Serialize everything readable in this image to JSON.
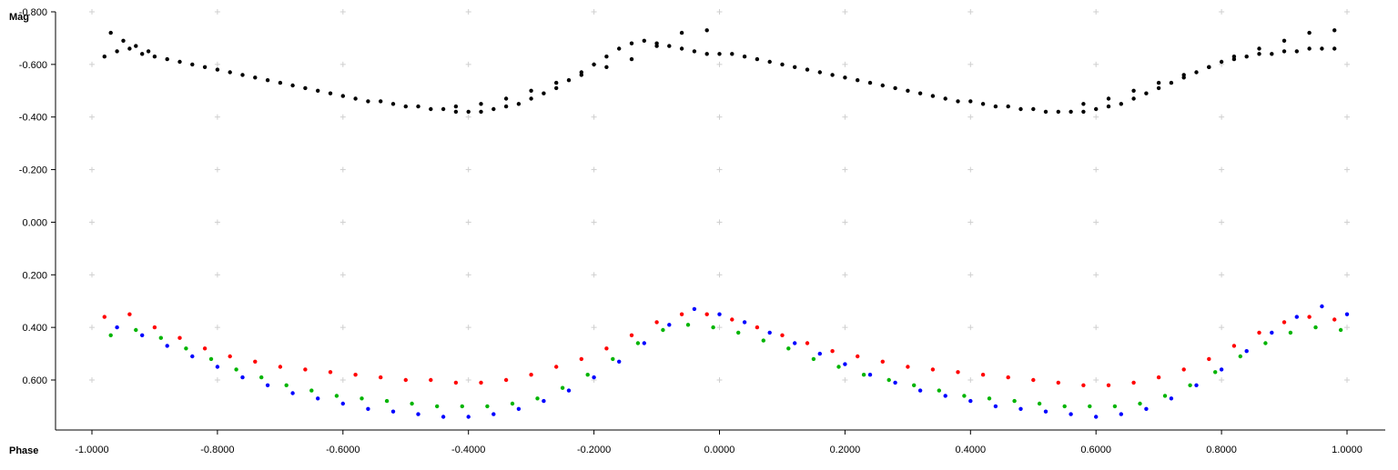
{
  "chart_data": {
    "type": "scatter",
    "xlabel": "Phase",
    "ylabel": "Mag",
    "xlim": [
      -1.0,
      1.0
    ],
    "ylim": [
      -0.8,
      0.8
    ],
    "y_inverted": true,
    "grid": "crosses",
    "x_ticks": [
      -1.0,
      -0.8,
      -0.6,
      -0.4,
      -0.2,
      0.0,
      0.2,
      0.4,
      0.6,
      0.8,
      1.0
    ],
    "x_tick_labels": [
      "-1.0000",
      "-0.8000",
      "-0.6000",
      "-0.4000",
      "-0.2000",
      "0.0000",
      "0.2000",
      "0.4000",
      "0.6000",
      "0.8000",
      "1.0000"
    ],
    "y_ticks": [
      -0.8,
      -0.6,
      -0.4,
      -0.2,
      0.0,
      0.2,
      0.4,
      0.6
    ],
    "y_tick_labels": [
      "-0.800",
      "-0.600",
      "-0.400",
      "-0.200",
      "0.000",
      "0.200",
      "0.400",
      "0.600"
    ],
    "series": [
      {
        "color": "#000000",
        "x": [
          -0.98,
          -0.96,
          -0.94,
          -0.92,
          -0.9,
          -0.88,
          -0.86,
          -0.84,
          -0.82,
          -0.8,
          -0.78,
          -0.76,
          -0.74,
          -0.72,
          -0.7,
          -0.68,
          -0.66,
          -0.64,
          -0.62,
          -0.6,
          -0.58,
          -0.56,
          -0.54,
          -0.52,
          -0.5,
          -0.48,
          -0.46,
          -0.44,
          -0.42,
          -0.4,
          -0.38,
          -0.36,
          -0.34,
          -0.32,
          -0.3,
          -0.28,
          -0.26,
          -0.24,
          -0.22,
          -0.2,
          -0.18,
          -0.16,
          -0.14,
          -0.12,
          -0.1,
          -0.08,
          -0.06,
          -0.04,
          -0.02,
          0.0,
          0.02,
          0.04,
          0.06,
          0.08,
          0.1,
          0.12,
          0.14,
          0.16,
          0.18,
          0.2,
          0.22,
          0.24,
          0.26,
          0.28,
          0.3,
          0.32,
          0.34,
          0.36,
          0.38,
          0.4,
          0.42,
          0.44,
          0.46,
          0.48,
          0.5,
          0.52,
          0.54,
          0.56,
          0.58,
          0.6,
          0.62,
          0.64,
          0.66,
          0.68,
          0.7,
          0.72,
          0.74,
          0.76,
          0.78,
          0.8,
          0.82,
          0.84,
          0.86,
          0.88,
          0.9,
          0.92,
          0.94,
          0.96,
          0.98,
          -0.97,
          -0.95,
          -0.93,
          -0.91,
          -0.42,
          -0.38,
          -0.34,
          -0.3,
          -0.26,
          -0.22,
          -0.18,
          -0.14,
          -0.1,
          -0.06,
          -0.02,
          0.58,
          0.62,
          0.66,
          0.7,
          0.74,
          0.78,
          0.82,
          0.86,
          0.9,
          0.94,
          0.98
        ],
        "y": [
          -0.63,
          -0.65,
          -0.66,
          -0.64,
          -0.63,
          -0.62,
          -0.61,
          -0.6,
          -0.59,
          -0.58,
          -0.57,
          -0.56,
          -0.55,
          -0.54,
          -0.53,
          -0.52,
          -0.51,
          -0.5,
          -0.49,
          -0.48,
          -0.47,
          -0.46,
          -0.46,
          -0.45,
          -0.44,
          -0.44,
          -0.43,
          -0.43,
          -0.42,
          -0.42,
          -0.42,
          -0.43,
          -0.44,
          -0.45,
          -0.47,
          -0.49,
          -0.51,
          -0.54,
          -0.57,
          -0.6,
          -0.63,
          -0.66,
          -0.68,
          -0.69,
          -0.68,
          -0.67,
          -0.66,
          -0.65,
          -0.64,
          -0.64,
          -0.64,
          -0.63,
          -0.62,
          -0.61,
          -0.6,
          -0.59,
          -0.58,
          -0.57,
          -0.56,
          -0.55,
          -0.54,
          -0.53,
          -0.52,
          -0.51,
          -0.5,
          -0.49,
          -0.48,
          -0.47,
          -0.46,
          -0.46,
          -0.45,
          -0.44,
          -0.44,
          -0.43,
          -0.43,
          -0.42,
          -0.42,
          -0.42,
          -0.42,
          -0.43,
          -0.44,
          -0.45,
          -0.47,
          -0.49,
          -0.51,
          -0.53,
          -0.55,
          -0.57,
          -0.59,
          -0.61,
          -0.62,
          -0.63,
          -0.64,
          -0.64,
          -0.65,
          -0.65,
          -0.66,
          -0.66,
          -0.66,
          -0.72,
          -0.69,
          -0.67,
          -0.65,
          -0.44,
          -0.45,
          -0.47,
          -0.5,
          -0.53,
          -0.56,
          -0.59,
          -0.62,
          -0.67,
          -0.72,
          -0.73,
          -0.45,
          -0.47,
          -0.5,
          -0.53,
          -0.56,
          -0.59,
          -0.63,
          -0.66,
          -0.69,
          -0.72,
          -0.73
        ]
      },
      {
        "color": "#ff0000",
        "x": [
          -0.98,
          -0.94,
          -0.9,
          -0.86,
          -0.82,
          -0.78,
          -0.74,
          -0.7,
          -0.66,
          -0.62,
          -0.58,
          -0.54,
          -0.5,
          -0.46,
          -0.42,
          -0.38,
          -0.34,
          -0.3,
          -0.26,
          -0.22,
          -0.18,
          -0.14,
          -0.1,
          -0.06,
          -0.02,
          0.02,
          0.06,
          0.1,
          0.14,
          0.18,
          0.22,
          0.26,
          0.3,
          0.34,
          0.38,
          0.42,
          0.46,
          0.5,
          0.54,
          0.58,
          0.62,
          0.66,
          0.7,
          0.74,
          0.78,
          0.82,
          0.86,
          0.9,
          0.94,
          0.98
        ],
        "y": [
          0.36,
          0.35,
          0.4,
          0.44,
          0.48,
          0.51,
          0.53,
          0.55,
          0.56,
          0.57,
          0.58,
          0.59,
          0.6,
          0.6,
          0.61,
          0.61,
          0.6,
          0.58,
          0.55,
          0.52,
          0.48,
          0.43,
          0.38,
          0.35,
          0.35,
          0.37,
          0.4,
          0.43,
          0.46,
          0.49,
          0.51,
          0.53,
          0.55,
          0.56,
          0.57,
          0.58,
          0.59,
          0.6,
          0.61,
          0.62,
          0.62,
          0.61,
          0.59,
          0.56,
          0.52,
          0.47,
          0.42,
          0.38,
          0.36,
          0.37
        ]
      },
      {
        "color": "#00b400",
        "x": [
          -0.97,
          -0.93,
          -0.89,
          -0.85,
          -0.81,
          -0.77,
          -0.73,
          -0.69,
          -0.65,
          -0.61,
          -0.57,
          -0.53,
          -0.49,
          -0.45,
          -0.41,
          -0.37,
          -0.33,
          -0.29,
          -0.25,
          -0.21,
          -0.17,
          -0.13,
          -0.09,
          -0.05,
          -0.01,
          0.03,
          0.07,
          0.11,
          0.15,
          0.19,
          0.23,
          0.27,
          0.31,
          0.35,
          0.39,
          0.43,
          0.47,
          0.51,
          0.55,
          0.59,
          0.63,
          0.67,
          0.71,
          0.75,
          0.79,
          0.83,
          0.87,
          0.91,
          0.95,
          0.99
        ],
        "y": [
          0.43,
          0.41,
          0.44,
          0.48,
          0.52,
          0.56,
          0.59,
          0.62,
          0.64,
          0.66,
          0.67,
          0.68,
          0.69,
          0.7,
          0.7,
          0.7,
          0.69,
          0.67,
          0.63,
          0.58,
          0.52,
          0.46,
          0.41,
          0.39,
          0.4,
          0.42,
          0.45,
          0.48,
          0.52,
          0.55,
          0.58,
          0.6,
          0.62,
          0.64,
          0.66,
          0.67,
          0.68,
          0.69,
          0.7,
          0.7,
          0.7,
          0.69,
          0.66,
          0.62,
          0.57,
          0.51,
          0.46,
          0.42,
          0.4,
          0.41
        ]
      },
      {
        "color": "#0000ff",
        "x": [
          -0.96,
          -0.92,
          -0.88,
          -0.84,
          -0.8,
          -0.76,
          -0.72,
          -0.68,
          -0.64,
          -0.6,
          -0.56,
          -0.52,
          -0.48,
          -0.44,
          -0.4,
          -0.36,
          -0.32,
          -0.28,
          -0.24,
          -0.2,
          -0.16,
          -0.12,
          -0.08,
          -0.04,
          0.0,
          0.04,
          0.08,
          0.12,
          0.16,
          0.2,
          0.24,
          0.28,
          0.32,
          0.36,
          0.4,
          0.44,
          0.48,
          0.52,
          0.56,
          0.6,
          0.64,
          0.68,
          0.72,
          0.76,
          0.8,
          0.84,
          0.88,
          0.92,
          0.96,
          1.0
        ],
        "y": [
          0.4,
          0.43,
          0.47,
          0.51,
          0.55,
          0.59,
          0.62,
          0.65,
          0.67,
          0.69,
          0.71,
          0.72,
          0.73,
          0.74,
          0.74,
          0.73,
          0.71,
          0.68,
          0.64,
          0.59,
          0.53,
          0.46,
          0.39,
          0.33,
          0.35,
          0.38,
          0.42,
          0.46,
          0.5,
          0.54,
          0.58,
          0.61,
          0.64,
          0.66,
          0.68,
          0.7,
          0.71,
          0.72,
          0.73,
          0.74,
          0.73,
          0.71,
          0.67,
          0.62,
          0.56,
          0.49,
          0.42,
          0.36,
          0.32,
          0.35
        ]
      }
    ]
  }
}
